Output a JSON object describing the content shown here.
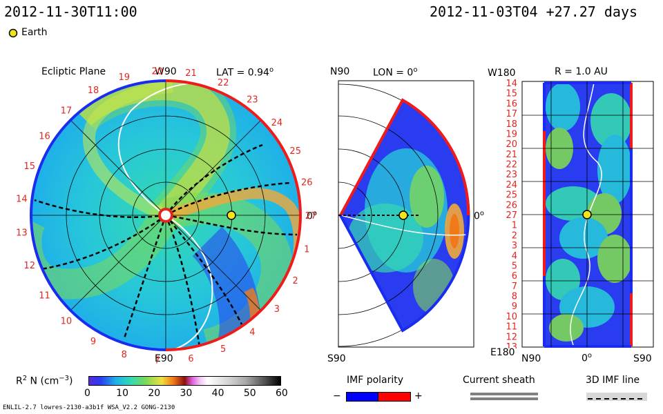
{
  "header": {
    "left_time": "2012-11-30T11:00",
    "right_time": "2012-11-03T04",
    "offset": "+27.27 days"
  },
  "legend": {
    "earth_label": "Earth"
  },
  "panels": {
    "ecliptic": {
      "title": "Ecliptic Plane",
      "lat_label": "LAT = 0.94",
      "deg": "o",
      "top_label": "W90",
      "bottom_label": "E90",
      "right_label": "0",
      "ticks": [
        "27",
        "1",
        "2",
        "3",
        "4",
        "5",
        "6",
        "7",
        "8",
        "9",
        "10",
        "11",
        "12",
        "13",
        "14",
        "15",
        "16",
        "17",
        "18",
        "19",
        "20",
        "21",
        "22",
        "23",
        "24",
        "25",
        "26"
      ]
    },
    "meridional": {
      "top_label": "N90",
      "lon_label": "LON = 0",
      "deg": "o",
      "bottom_label": "S90",
      "right_label": "0"
    },
    "radial": {
      "top_left": "W180",
      "title": "R = 1.0 AU",
      "bottom_left": "E180",
      "x_left": "N90",
      "x_mid": "0",
      "x_right": "S90",
      "rows": [
        "14",
        "15",
        "16",
        "17",
        "18",
        "19",
        "20",
        "21",
        "22",
        "23",
        "24",
        "25",
        "26",
        "27",
        "1",
        "2",
        "3",
        "4",
        "5",
        "6",
        "7",
        "8",
        "9",
        "10",
        "11",
        "12",
        "13"
      ]
    }
  },
  "colorbar": {
    "label_prefix": "R",
    "label_sup": "2",
    "label_mid": " N (cm",
    "label_sup2": "−3",
    "label_end": ")",
    "ticks": [
      "0",
      "10",
      "20",
      "30",
      "40",
      "50",
      "60"
    ]
  },
  "imf": {
    "label": "IMF polarity",
    "minus": "−",
    "plus": "+",
    "neg_color": "#0000ff",
    "pos_color": "#ff0000"
  },
  "sheath": {
    "label": "Current sheath"
  },
  "imf3d": {
    "label": "3D IMF line"
  },
  "footer": {
    "text": "ENLIL-2.7 lowres-2130-a3b1f WSA_V2.2 GONG-2130"
  },
  "colors": {
    "earth": "#f5e21a",
    "tick_red": "#e0261f",
    "blue_edge": "#1a2cf0",
    "red_edge": "#f01a1a"
  },
  "chart_data": {
    "type": "heatmap",
    "title": "",
    "quantity": "R² N (cm⁻³)",
    "colorbar_range": [
      0,
      60
    ],
    "colorbar_ticks": [
      0,
      10,
      20,
      30,
      40,
      50,
      60
    ],
    "panels": [
      "Ecliptic Plane",
      "Meridional LON = 0°",
      "R = 1.0 AU"
    ],
    "earth_position": {
      "lat_deg": 0.94,
      "r_au": 1.0,
      "lon_deg": 0
    },
    "carrington_ticks": [
      "27",
      "1",
      "2",
      "3",
      "4",
      "5",
      "6",
      "7",
      "8",
      "9",
      "10",
      "11",
      "12",
      "13",
      "14",
      "15",
      "16",
      "17",
      "18",
      "19",
      "20",
      "21",
      "22",
      "23",
      "24",
      "25",
      "26"
    ],
    "imf_polarity": [
      "−",
      "+"
    ]
  }
}
